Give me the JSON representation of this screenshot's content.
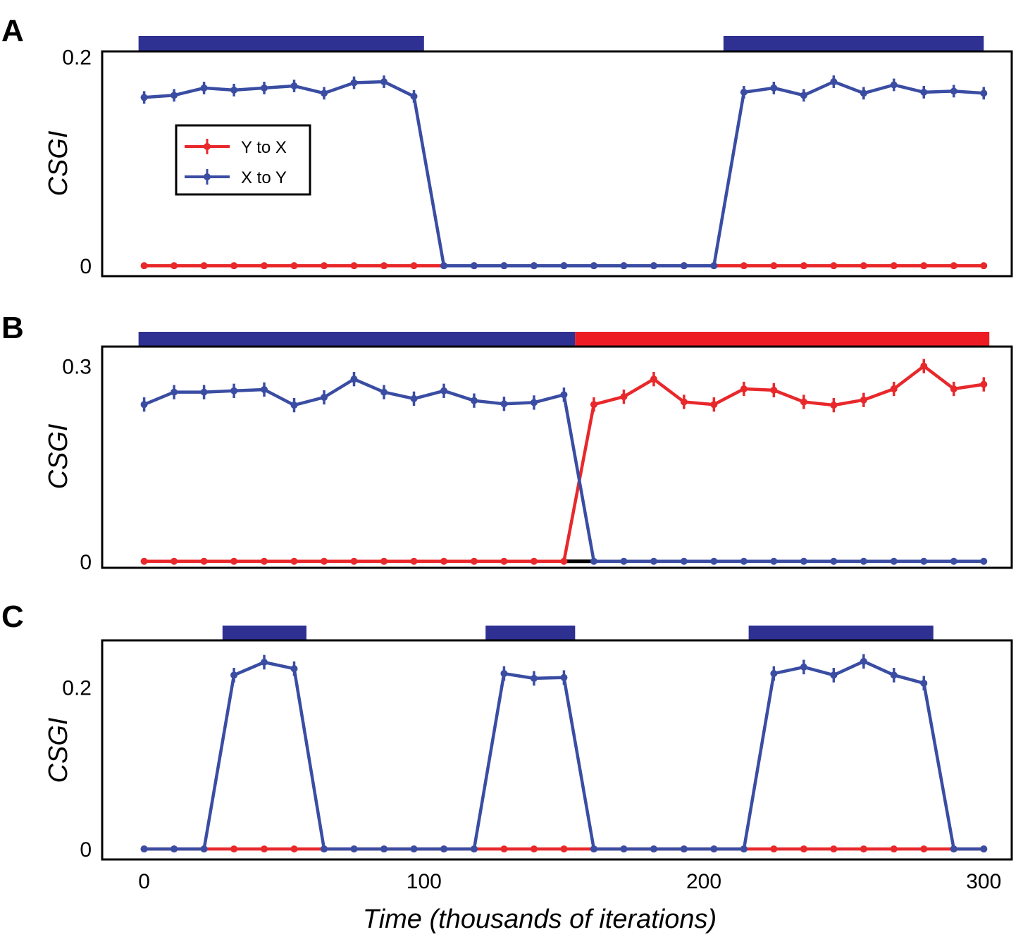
{
  "colors": {
    "red": "#e8282b",
    "blue": "#3a4da3",
    "bar_blue": "#2e3192",
    "bar_red": "#ed1c24",
    "black": "#000000"
  },
  "x_axis": {
    "label": "Time (thousands of iterations)",
    "ticks": [
      0,
      100,
      200,
      300
    ],
    "tick_labels": [
      "0",
      "100",
      "200",
      "300"
    ],
    "xlim": [
      -15,
      310
    ]
  },
  "legend": {
    "entries": [
      {
        "label": "Y to X",
        "series": "red"
      },
      {
        "label": "X to Y",
        "series": "blue"
      }
    ]
  },
  "chart_data": [
    {
      "panel": "A",
      "type": "line",
      "ylabel": "CSGI",
      "ylim": [
        -0.01,
        0.205
      ],
      "yticks": [
        0,
        0.2
      ],
      "ytick_labels": [
        "0",
        "0.2"
      ],
      "x": [
        0,
        10.7,
        21.4,
        32.1,
        42.9,
        53.6,
        64.3,
        75,
        85.7,
        96.4,
        107.1,
        117.9,
        128.6,
        139.3,
        150,
        160.7,
        171.4,
        182.1,
        192.9,
        203.6,
        214.3,
        225,
        235.7,
        246.4,
        257.1,
        267.9,
        278.6,
        289.3,
        300
      ],
      "series": [
        {
          "name": "Y to X",
          "color": "red",
          "values": [
            0,
            0,
            0,
            0,
            0,
            0,
            0,
            0,
            0,
            0,
            0,
            0,
            0,
            0,
            0,
            0,
            0,
            0,
            0,
            0,
            0,
            0,
            0,
            0,
            0,
            0,
            0,
            0,
            0
          ],
          "err": 0
        },
        {
          "name": "X to Y",
          "color": "blue",
          "values": [
            0.161,
            0.163,
            0.17,
            0.168,
            0.17,
            0.172,
            0.165,
            0.175,
            0.176,
            0.162,
            0,
            0,
            0,
            0,
            0,
            0,
            0,
            0,
            0,
            0,
            0.166,
            0.17,
            0.163,
            0.176,
            0.165,
            0.173,
            0.166,
            0.167,
            0.165
          ],
          "err": 0.006
        }
      ],
      "bands": [
        {
          "start": -2,
          "end": 100,
          "color": "bar_blue"
        },
        {
          "start": 207,
          "end": 300,
          "color": "bar_blue"
        }
      ]
    },
    {
      "panel": "B",
      "type": "line",
      "ylabel": "CSGI",
      "ylim": [
        -0.01,
        0.33
      ],
      "yticks": [
        0,
        0.3
      ],
      "ytick_labels": [
        "0",
        "0.3"
      ],
      "x": [
        0,
        10.7,
        21.4,
        32.1,
        42.9,
        53.6,
        64.3,
        75,
        85.7,
        96.4,
        107.1,
        117.9,
        128.6,
        139.3,
        150,
        160.7,
        171.4,
        182.1,
        192.9,
        203.6,
        214.3,
        225,
        235.7,
        246.4,
        257.1,
        267.9,
        278.6,
        289.3,
        300
      ],
      "series": [
        {
          "name": "Y to X",
          "color": "red",
          "values": [
            0,
            0,
            0,
            0,
            0,
            0,
            0,
            0,
            0,
            0,
            0,
            0,
            0,
            0,
            0,
            0.241,
            0.253,
            0.28,
            0.245,
            0.241,
            0.265,
            0.263,
            0.245,
            0.24,
            0.248,
            0.265,
            0.3,
            0.265,
            0.272
          ],
          "err": 0.011
        },
        {
          "name": "X to Y",
          "color": "blue",
          "values": [
            0.241,
            0.26,
            0.26,
            0.262,
            0.264,
            0.24,
            0.252,
            0.28,
            0.26,
            0.25,
            0.262,
            0.247,
            0.242,
            0.244,
            0.256,
            0,
            0,
            0,
            0,
            0,
            0,
            0,
            0,
            0,
            0,
            0,
            0,
            0,
            0
          ],
          "err": 0.011
        }
      ],
      "bands": [
        {
          "start": -2,
          "end": 154,
          "color": "bar_blue"
        },
        {
          "start": 154,
          "end": 302,
          "color": "bar_red"
        }
      ],
      "zero_segment": [
        150,
        160.7
      ]
    },
    {
      "panel": "C",
      "type": "line",
      "ylabel": "CSGI",
      "ylim": [
        -0.013,
        0.258
      ],
      "yticks": [
        0,
        0.2
      ],
      "ytick_labels": [
        "0",
        "0.2"
      ],
      "x": [
        0,
        10.7,
        21.4,
        32.1,
        42.9,
        53.6,
        64.3,
        75,
        85.7,
        96.4,
        107.1,
        117.9,
        128.6,
        139.3,
        150,
        160.7,
        171.4,
        182.1,
        192.9,
        203.6,
        214.3,
        225,
        235.7,
        246.4,
        257.1,
        267.9,
        278.6,
        289.3,
        300
      ],
      "series": [
        {
          "name": "Y to X",
          "color": "red",
          "values": [
            0,
            0,
            0,
            0,
            0,
            0,
            0,
            0,
            0,
            0,
            0,
            0,
            0,
            0,
            0,
            0,
            0,
            0,
            0,
            0,
            0,
            0,
            0,
            0,
            0,
            0,
            0,
            0,
            0
          ],
          "err": 0
        },
        {
          "name": "X to Y",
          "color": "blue",
          "values": [
            0,
            0,
            0,
            0.215,
            0.231,
            0.223,
            0,
            0,
            0,
            0,
            0,
            0,
            0.217,
            0.211,
            0.212,
            0,
            0,
            0,
            0,
            0,
            0,
            0.217,
            0.225,
            0.215,
            0.232,
            0.215,
            0.205,
            0,
            0
          ],
          "err": 0.009
        }
      ],
      "bands": [
        {
          "start": 28,
          "end": 58,
          "color": "bar_blue"
        },
        {
          "start": 122,
          "end": 154,
          "color": "bar_blue"
        },
        {
          "start": 216,
          "end": 282,
          "color": "bar_blue"
        }
      ]
    }
  ]
}
